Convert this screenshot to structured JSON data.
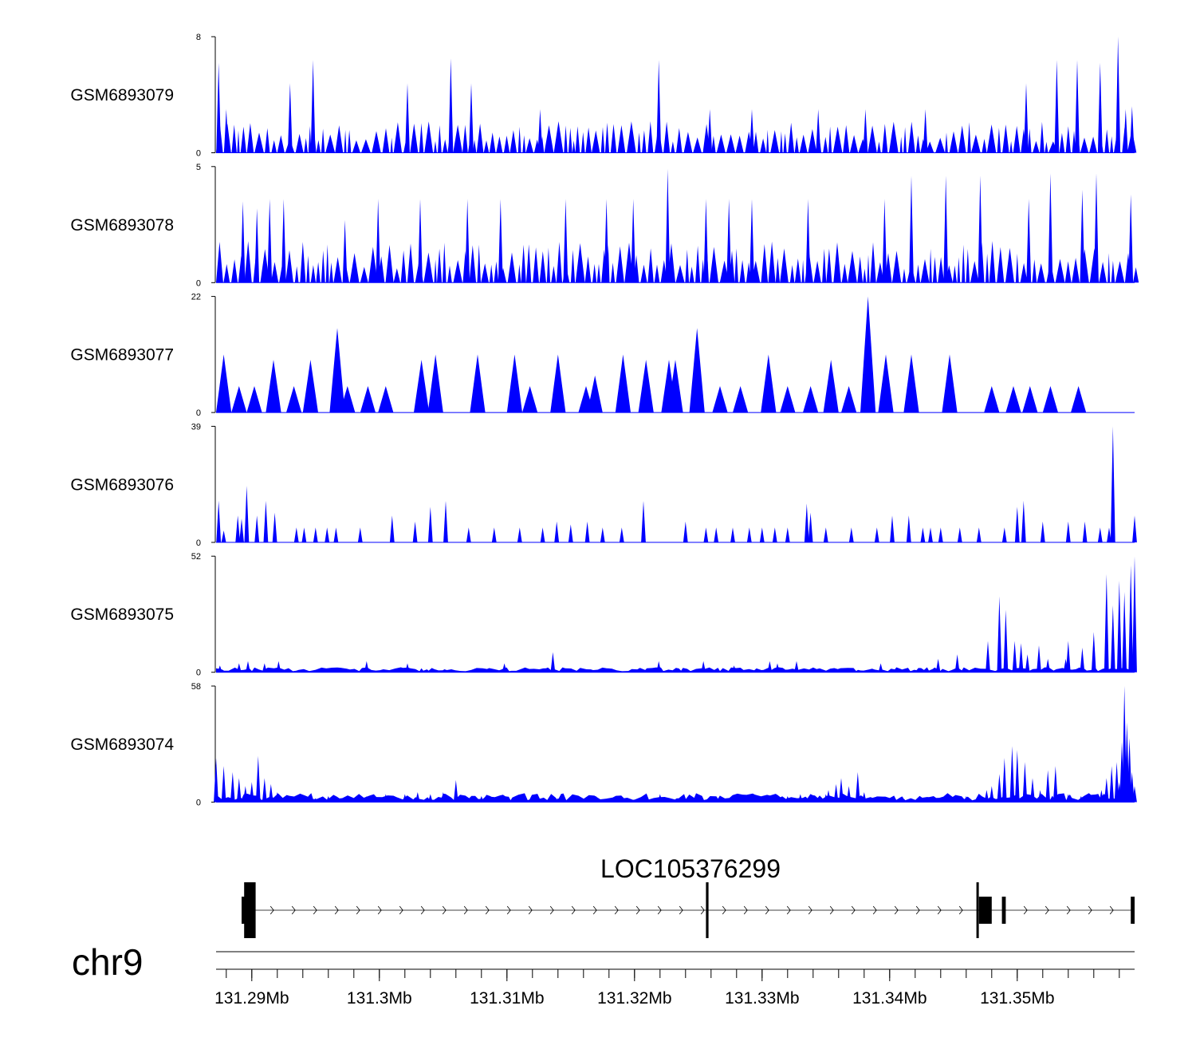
{
  "chart_data": {
    "type": "area",
    "title": "",
    "chromosome": "chr9",
    "xlim": [
      131.2872,
      131.3592
    ],
    "x_unit": "Mb",
    "x_ticks": [
      {
        "value": 131.29,
        "label": "131.29Mb"
      },
      {
        "value": 131.3,
        "label": "131.3Mb"
      },
      {
        "value": 131.31,
        "label": "131.31Mb"
      },
      {
        "value": 131.32,
        "label": "131.32Mb"
      },
      {
        "value": 131.33,
        "label": "131.33Mb"
      },
      {
        "value": 131.34,
        "label": "131.34Mb"
      },
      {
        "value": 131.35,
        "label": "131.35Mb"
      }
    ],
    "fill_color": "#0000ff",
    "series": [
      {
        "name": "GSM6893079",
        "ylim": [
          0,
          8
        ],
        "baseline": "sparse",
        "x": [
          131.2874,
          131.2875,
          131.288,
          131.293,
          131.2948,
          131.3022,
          131.3056,
          131.3072,
          131.3126,
          131.3219,
          131.3259,
          131.3292,
          131.3344,
          131.3381,
          131.3428,
          131.3468,
          131.3507,
          131.3531,
          131.3547,
          131.3565,
          131.3579,
          131.3585,
          131.359
        ],
        "values": [
          6.2,
          0,
          3.0,
          4.8,
          6.4,
          4.8,
          6.5,
          4.8,
          3.0,
          6.4,
          3.0,
          3.0,
          3.0,
          3.0,
          3.0,
          0.2,
          4.8,
          6.4,
          6.4,
          6.2,
          8.0,
          3.0,
          3.2
        ],
        "base_level": 1.5
      },
      {
        "name": "GSM6893078",
        "ylim": [
          0,
          5
        ],
        "baseline": "sparse",
        "x": [
          131.2893,
          131.2904,
          131.2914,
          131.2925,
          131.2973,
          131.2999,
          131.3032,
          131.3069,
          131.3095,
          131.3146,
          131.3178,
          131.3199,
          131.3226,
          131.3256,
          131.3274,
          131.3292,
          131.3336,
          131.3396,
          131.3417,
          131.3444,
          131.3471,
          131.3509,
          131.3526,
          131.3551,
          131.3562,
          131.3589
        ],
        "values": [
          3.5,
          3.2,
          3.6,
          3.6,
          2.7,
          3.6,
          3.6,
          3.6,
          3.6,
          3.6,
          3.6,
          3.6,
          4.9,
          3.6,
          3.6,
          3.6,
          3.6,
          3.6,
          4.6,
          4.6,
          4.6,
          3.6,
          4.7,
          4.0,
          4.7,
          3.8
        ],
        "base_level": 1.2
      },
      {
        "name": "GSM6893077",
        "ylim": [
          0,
          22
        ],
        "baseline": "none",
        "x": [
          131.2878,
          131.289,
          131.2902,
          131.2917,
          131.2933,
          131.2946,
          131.2967,
          131.2975,
          131.2991,
          131.3005,
          131.3033,
          131.3044,
          131.3077,
          131.3106,
          131.3118,
          131.314,
          131.3162,
          131.3169,
          131.3191,
          131.3209,
          131.3227,
          131.3232,
          131.3249,
          131.3267,
          131.3283,
          131.3305,
          131.332,
          131.3338,
          131.3354,
          131.3368,
          131.3383,
          131.3397,
          131.3417,
          131.3447,
          131.348,
          131.3497,
          131.351,
          131.3526,
          131.3548
        ],
        "values": [
          11,
          5,
          5,
          10,
          5,
          10,
          16,
          5,
          5,
          5,
          10,
          11,
          11,
          11,
          5,
          11,
          5,
          7,
          11,
          10,
          10,
          10,
          16,
          5,
          5,
          11,
          5,
          5,
          10,
          5,
          22,
          11,
          11,
          11,
          5,
          5,
          5,
          5,
          5
        ],
        "half_width": 0.0006
      },
      {
        "name": "GSM6893076",
        "ylim": [
          0,
          39
        ],
        "baseline": "none",
        "x": [
          131.2874,
          131.2878,
          131.2889,
          131.2892,
          131.2896,
          131.2904,
          131.2911,
          131.2918,
          131.2935,
          131.2941,
          131.295,
          131.2959,
          131.2966,
          131.2985,
          131.301,
          131.3028,
          131.304,
          131.3052,
          131.307,
          131.309,
          131.311,
          131.3128,
          131.3139,
          131.315,
          131.3163,
          131.3175,
          131.319,
          131.3207,
          131.324,
          131.3256,
          131.3264,
          131.3277,
          131.329,
          131.33,
          131.331,
          131.332,
          131.3335,
          131.3338,
          131.335,
          131.337,
          131.339,
          131.3402,
          131.3415,
          131.3426,
          131.3432,
          131.344,
          131.3455,
          131.347,
          131.349,
          131.35,
          131.3505,
          131.352,
          131.354,
          131.3553,
          131.3565,
          131.3572,
          131.3575,
          131.3592
        ],
        "values": [
          14,
          4,
          9,
          8,
          19,
          9,
          14,
          10,
          5,
          5,
          5,
          5,
          5,
          5,
          9,
          7,
          12,
          14,
          5,
          5,
          5,
          5,
          7,
          6,
          7,
          5,
          5,
          14,
          7,
          5,
          5,
          5,
          5,
          5,
          5,
          5,
          13,
          10,
          5,
          5,
          5,
          9,
          9,
          5,
          5,
          5,
          5,
          5,
          5,
          12,
          14,
          7,
          7,
          7,
          5,
          5,
          39,
          9
        ],
        "base_level": 1.0
      },
      {
        "name": "GSM6893075",
        "ylim": [
          0,
          52
        ],
        "baseline": "dense",
        "x": [
          131.2875,
          131.289,
          131.2897,
          131.291,
          131.2921,
          131.299,
          131.3022,
          131.3098,
          131.3136,
          131.3219,
          131.3254,
          131.3278,
          131.3306,
          131.3312,
          131.3327,
          131.3393,
          131.3438,
          131.3453,
          131.3477,
          131.3486,
          131.3491,
          131.3498,
          131.3503,
          131.3508,
          131.3517,
          131.3524,
          131.3538,
          131.354,
          131.3551,
          131.356,
          131.357,
          131.3575,
          131.358,
          131.3584,
          131.3589,
          131.3592
        ],
        "values": [
          3,
          4,
          5,
          4,
          5,
          5,
          4,
          4,
          9,
          5,
          5,
          3,
          5,
          4,
          5,
          4,
          6,
          8,
          14,
          34,
          28,
          14,
          13,
          8,
          12,
          6,
          6,
          14,
          11,
          18,
          44,
          30,
          41,
          36,
          48,
          52
        ],
        "base_level": 1.5
      },
      {
        "name": "GSM6893074",
        "ylim": [
          0,
          58
        ],
        "baseline": "dense",
        "x": [
          131.2872,
          131.2878,
          131.2885,
          131.289,
          131.2895,
          131.29,
          131.2905,
          131.291,
          131.2915,
          131.292,
          131.293,
          131.295,
          131.296,
          131.299,
          131.3005,
          131.302,
          131.303,
          131.304,
          131.305,
          131.306,
          131.308,
          131.311,
          131.314,
          131.317,
          131.319,
          131.322,
          131.3245,
          131.326,
          131.328,
          131.33,
          131.332,
          131.333,
          131.334,
          131.335,
          131.3352,
          131.3358,
          131.3362,
          131.3368,
          131.3375,
          131.338,
          131.339,
          131.341,
          131.343,
          131.345,
          131.346,
          131.347,
          131.3476,
          131.348,
          131.3486,
          131.349,
          131.3496,
          131.35,
          131.3506,
          131.3512,
          131.3518,
          131.3524,
          131.353,
          131.354,
          131.355,
          131.356,
          131.3566,
          131.357,
          131.3574,
          131.3578,
          131.358,
          131.3582,
          131.3584,
          131.3586,
          131.3588,
          131.359,
          131.3592
        ],
        "values": [
          22,
          18,
          15,
          12,
          8,
          10,
          23,
          12,
          9,
          5,
          3,
          2,
          3,
          3,
          4,
          4,
          5,
          4,
          5,
          11,
          3,
          2,
          2,
          3,
          2,
          4,
          3,
          2,
          2,
          3,
          3,
          4,
          3,
          4,
          6,
          9,
          12,
          8,
          15,
          5,
          3,
          3,
          2,
          2,
          3,
          2,
          6,
          8,
          14,
          22,
          28,
          26,
          20,
          12,
          6,
          16,
          18,
          4,
          3,
          2,
          6,
          12,
          18,
          20,
          10,
          30,
          58,
          40,
          32,
          15,
          8
        ],
        "base_level": 3.0
      }
    ],
    "gene": {
      "name": "LOC105376299",
      "strand": "+",
      "start": 131.2894,
      "end": 131.3592,
      "exons": [
        {
          "start": 131.2894,
          "end": 131.2903,
          "height": "large"
        },
        {
          "start": 131.2892,
          "end": 131.2899,
          "height": "medium"
        },
        {
          "start": 131.3256,
          "end": 131.3258,
          "height": "large"
        },
        {
          "start": 131.3468,
          "end": 131.3469,
          "height": "large"
        },
        {
          "start": 131.347,
          "end": 131.348,
          "height": "medium"
        },
        {
          "start": 131.3488,
          "end": 131.3491,
          "height": "small"
        },
        {
          "start": 131.3589,
          "end": 131.3592,
          "height": "small"
        }
      ]
    }
  }
}
